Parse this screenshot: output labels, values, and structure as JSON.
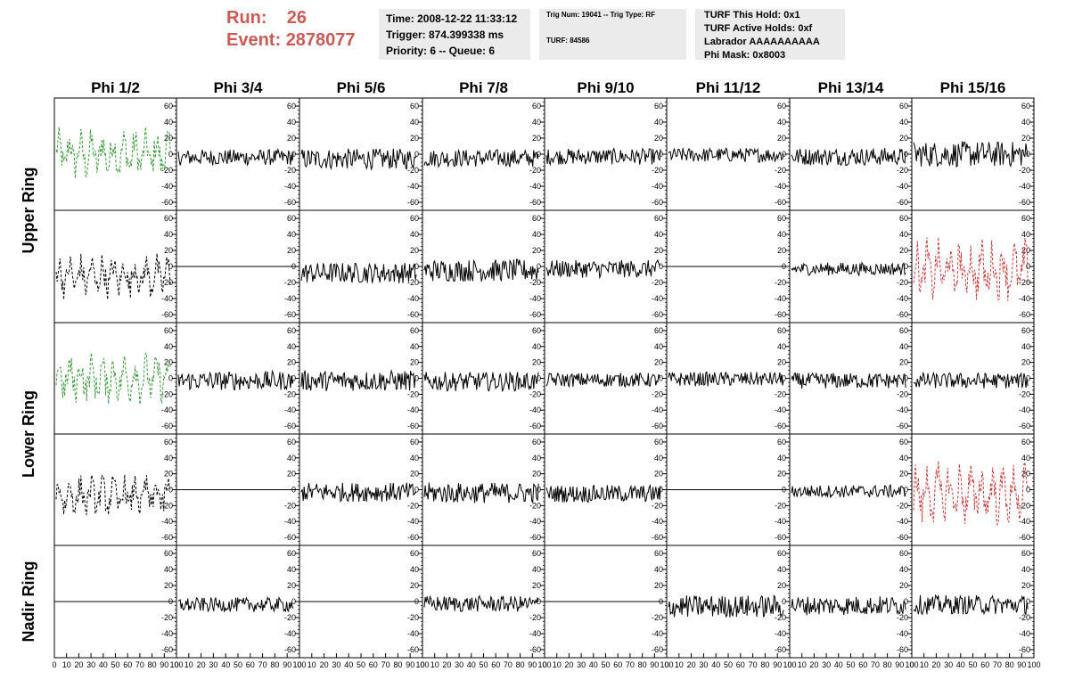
{
  "header": {
    "run_label": "Run:",
    "run_value": "26",
    "event_label": "Event:",
    "event_value": "2878077"
  },
  "info": {
    "time": "Time: 2008-12-22 11:33:12",
    "trigger": "Trigger: 874.399338 ms",
    "priority": "Priority: 6 -- Queue: 6",
    "trig_num": "Trig Num: 19041 -- Trig Type: RF",
    "turf": "TURF: 84586",
    "turf_this_hold": "TURF This Hold: 0x1",
    "turf_active_holds": "TURF Active Holds: 0xf",
    "labrador": "Labrador AAAAAAAAAA",
    "phi_mask": "Phi Mask: 0x8003"
  },
  "chart_data": {
    "type": "line",
    "column_titles": [
      "Phi 1/2",
      "Phi 3/4",
      "Phi 5/6",
      "Phi 7/8",
      "Phi 9/10",
      "Phi 11/12",
      "Phi 13/14",
      "Phi 15/16"
    ],
    "ring_labels": [
      "Upper Ring",
      "Lower Ring",
      "Nadir Ring"
    ],
    "ylim": [
      -70,
      70
    ],
    "y_ticks": [
      -60,
      -40,
      -20,
      0,
      20,
      40,
      60
    ],
    "xlim": [
      0,
      100
    ],
    "x_ticks": [
      0,
      10,
      20,
      30,
      40,
      50,
      60,
      70,
      80,
      90,
      100
    ],
    "colors": {
      "normal": "#000000",
      "triggered_green": "#3a9a3a",
      "triggered_red": "#c83c3c",
      "box_bg": "#ebebeb",
      "run_text": "#cc5a55"
    },
    "panels": [
      [
        {
          "style": "green-dashed",
          "amp": 18,
          "mean": 0
        },
        {
          "style": "solid",
          "amp": 10,
          "mean": -4
        },
        {
          "style": "solid",
          "amp": 13,
          "mean": -6
        },
        {
          "style": "solid",
          "amp": 11,
          "mean": -5
        },
        {
          "style": "solid",
          "amp": 10,
          "mean": -3
        },
        {
          "style": "solid",
          "amp": 9,
          "mean": -1
        },
        {
          "style": "solid",
          "amp": 11,
          "mean": -3
        },
        {
          "style": "solid",
          "amp": 16,
          "mean": 0
        }
      ],
      [
        {
          "style": "black-dashed",
          "amp": 16,
          "mean": -12
        },
        {
          "style": "flat",
          "amp": 0,
          "mean": 0
        },
        {
          "style": "solid",
          "amp": 13,
          "mean": -8
        },
        {
          "style": "solid",
          "amp": 14,
          "mean": -5
        },
        {
          "style": "solid",
          "amp": 11,
          "mean": -3
        },
        {
          "style": "flat",
          "amp": 0,
          "mean": 0
        },
        {
          "style": "solid",
          "amp": 8,
          "mean": -3
        },
        {
          "style": "red-dashed",
          "amp": 22,
          "mean": -5
        }
      ],
      [
        {
          "style": "green-dashed",
          "amp": 18,
          "mean": 0
        },
        {
          "style": "solid",
          "amp": 12,
          "mean": -3
        },
        {
          "style": "solid",
          "amp": 13,
          "mean": -3
        },
        {
          "style": "solid",
          "amp": 12,
          "mean": -4
        },
        {
          "style": "solid",
          "amp": 9,
          "mean": -2
        },
        {
          "style": "solid",
          "amp": 9,
          "mean": -1
        },
        {
          "style": "solid",
          "amp": 10,
          "mean": -3
        },
        {
          "style": "solid",
          "amp": 10,
          "mean": -3
        }
      ],
      [
        {
          "style": "black-dashed",
          "amp": 15,
          "mean": -8
        },
        {
          "style": "flat",
          "amp": 0,
          "mean": 0
        },
        {
          "style": "solid",
          "amp": 12,
          "mean": -3
        },
        {
          "style": "solid",
          "amp": 13,
          "mean": -4
        },
        {
          "style": "solid",
          "amp": 11,
          "mean": -5
        },
        {
          "style": "flat",
          "amp": 0,
          "mean": 0
        },
        {
          "style": "solid",
          "amp": 8,
          "mean": -2
        },
        {
          "style": "red-dashed",
          "amp": 22,
          "mean": -5
        }
      ],
      [
        {
          "style": "flat",
          "amp": 0,
          "mean": 0
        },
        {
          "style": "solid",
          "amp": 9,
          "mean": -4
        },
        {
          "style": "flat",
          "amp": 0,
          "mean": 0
        },
        {
          "style": "solid",
          "amp": 10,
          "mean": -3
        },
        {
          "style": "flat",
          "amp": 0,
          "mean": 0
        },
        {
          "style": "solid",
          "amp": 14,
          "mean": -6
        },
        {
          "style": "solid",
          "amp": 12,
          "mean": -5
        },
        {
          "style": "solid",
          "amp": 12,
          "mean": -4
        }
      ]
    ]
  }
}
